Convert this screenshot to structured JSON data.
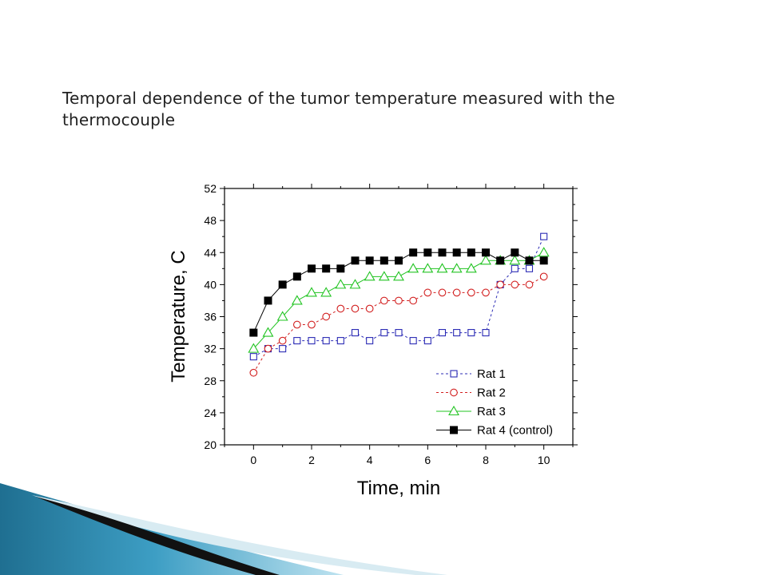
{
  "slide": {
    "title": "Temporal dependence of the tumor temperature measured with the thermocouple"
  },
  "chart_data": {
    "type": "line",
    "title": "",
    "xlabel": "Time, min",
    "ylabel": "Temperature, C",
    "xlim": [
      -1,
      11
    ],
    "ylim": [
      20,
      52
    ],
    "xticks": [
      0,
      2,
      4,
      6,
      8,
      10
    ],
    "yticks": [
      20,
      24,
      28,
      32,
      36,
      40,
      44,
      48,
      52
    ],
    "grid": false,
    "legend_position": "bottom-right",
    "x": [
      0,
      0.5,
      1,
      1.5,
      2,
      2.5,
      3,
      3.5,
      4,
      4.5,
      5,
      5.5,
      6,
      6.5,
      7,
      7.5,
      8,
      8.5,
      9,
      9.5,
      10
    ],
    "series": [
      {
        "name": "Rat 1",
        "color": "#2b2bb5",
        "marker": "square-open",
        "line_style": "dashed",
        "values": [
          31,
          32,
          32,
          33,
          33,
          33,
          33,
          34,
          33,
          34,
          34,
          33,
          33,
          34,
          34,
          34,
          34,
          40,
          42,
          42,
          46
        ]
      },
      {
        "name": "Rat 2",
        "color": "#d21f1f",
        "marker": "circle-open",
        "line_style": "dashed",
        "values": [
          29,
          32,
          33,
          35,
          35,
          36,
          37,
          37,
          37,
          38,
          38,
          38,
          39,
          39,
          39,
          39,
          39,
          40,
          40,
          40,
          41
        ]
      },
      {
        "name": "Rat 3",
        "color": "#22c422",
        "marker": "triangle-open",
        "line_style": "solid",
        "values": [
          32,
          34,
          36,
          38,
          39,
          39,
          40,
          40,
          41,
          41,
          41,
          42,
          42,
          42,
          42,
          42,
          43,
          43,
          43,
          43,
          44
        ]
      },
      {
        "name": "Rat 4 (control)",
        "color": "#000000",
        "marker": "square-filled",
        "line_style": "solid",
        "values": [
          34,
          38,
          40,
          41,
          42,
          42,
          42,
          43,
          43,
          43,
          43,
          44,
          44,
          44,
          44,
          44,
          44,
          43,
          44,
          43,
          43
        ]
      }
    ]
  }
}
